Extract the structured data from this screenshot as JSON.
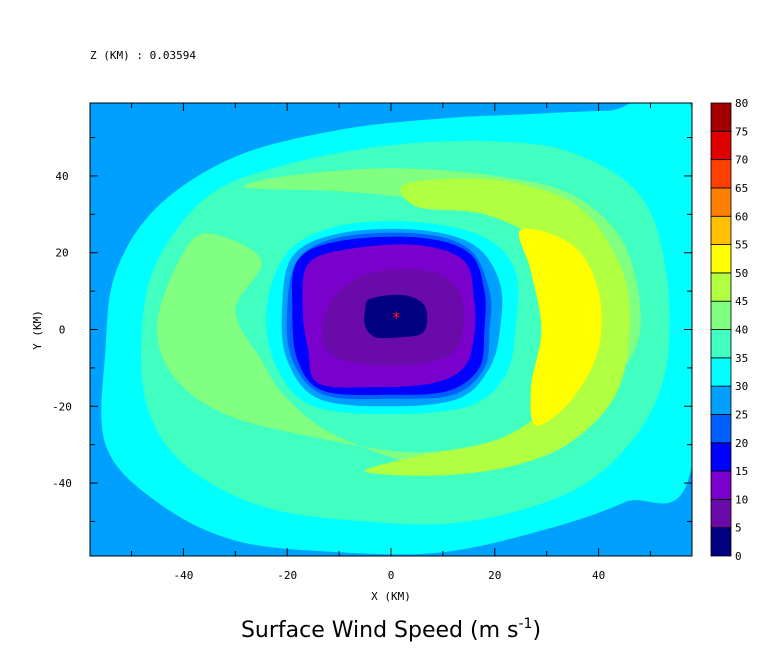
{
  "chart_data": {
    "type": "heatmap",
    "title": "Surface Wind Speed (m s",
    "title_exponent": "-1",
    "subtitle": "Z (KM) : 0.03594",
    "xlabel": "X (KM)",
    "ylabel": "Y (KM)",
    "xlim": [
      -58,
      58
    ],
    "ylim": [
      -59,
      59
    ],
    "x_ticks": [
      "-40",
      "-20",
      "0",
      "20",
      "40"
    ],
    "x_tick_values": [
      -40,
      -20,
      0,
      20,
      40
    ],
    "y_ticks": [
      "-40",
      "-20",
      "0",
      "20",
      "40"
    ],
    "y_tick_values": [
      -40,
      -20,
      0,
      20,
      40
    ],
    "colorbar": {
      "levels": [
        "0",
        "5",
        "10",
        "15",
        "20",
        "25",
        "30",
        "35",
        "40",
        "45",
        "50",
        "55",
        "60",
        "65",
        "70",
        "75",
        "80"
      ],
      "colors": [
        "#000080",
        "#6a0aa8",
        "#7a00cc",
        "#0000ff",
        "#0060ff",
        "#00a0ff",
        "#00ffff",
        "#40ffc0",
        "#80ff80",
        "#b0ff40",
        "#ffff00",
        "#ffc000",
        "#ff8000",
        "#ff4000",
        "#e00000",
        "#a00000"
      ]
    },
    "regions": [
      {
        "level_min": 0,
        "points": []
      },
      {
        "level_min": 25,
        "points": [
          [
            -58,
            -59
          ],
          [
            58,
            -59
          ],
          [
            58,
            -38
          ],
          [
            40,
            -50
          ],
          [
            30,
            -59
          ],
          [
            -30,
            -59
          ],
          [
            -50,
            -50
          ],
          [
            -58,
            -40
          ]
        ]
      },
      {
        "level_min": 25,
        "points": [
          [
            -58,
            59
          ],
          [
            -50,
            59
          ],
          [
            -55,
            50
          ],
          [
            -58,
            47
          ]
        ]
      },
      {
        "level_min": 30,
        "points": [
          [
            -55,
            -5
          ],
          [
            -53,
            15
          ],
          [
            -45,
            32
          ],
          [
            -30,
            45
          ],
          [
            -10,
            52
          ],
          [
            10,
            55
          ],
          [
            25,
            56
          ],
          [
            42,
            57
          ],
          [
            58,
            57
          ],
          [
            58,
            -35
          ],
          [
            45,
            -45
          ],
          [
            30,
            -52
          ],
          [
            10,
            -58
          ],
          [
            -10,
            -58
          ],
          [
            -30,
            -55
          ],
          [
            -45,
            -45
          ],
          [
            -55,
            -30
          ]
        ]
      },
      {
        "level_min": 35,
        "points": [
          [
            -48,
            0
          ],
          [
            -45,
            18
          ],
          [
            -35,
            35
          ],
          [
            -20,
            43
          ],
          [
            0,
            48
          ],
          [
            20,
            49
          ],
          [
            35,
            46
          ],
          [
            48,
            35
          ],
          [
            53,
            15
          ],
          [
            53,
            -10
          ],
          [
            47,
            -28
          ],
          [
            35,
            -42
          ],
          [
            15,
            -50
          ],
          [
            -5,
            -50
          ],
          [
            -25,
            -46
          ],
          [
            -40,
            -35
          ],
          [
            -47,
            -20
          ]
        ]
      },
      {
        "level_min": 40,
        "points": [
          [
            -45,
            2
          ],
          [
            -40,
            20
          ],
          [
            -35,
            25
          ],
          [
            -25,
            18
          ],
          [
            -30,
            5
          ],
          [
            -25,
            -8
          ],
          [
            -20,
            -18
          ],
          [
            -10,
            -28
          ],
          [
            10,
            -36
          ],
          [
            30,
            -30
          ],
          [
            42,
            -15
          ],
          [
            48,
            0
          ],
          [
            45,
            22
          ],
          [
            35,
            35
          ],
          [
            20,
            40
          ],
          [
            0,
            42
          ],
          [
            -20,
            40
          ],
          [
            -28,
            37
          ],
          [
            -10,
            36
          ],
          [
            5,
            34
          ],
          [
            20,
            30
          ],
          [
            32,
            22
          ],
          [
            38,
            10
          ],
          [
            38,
            -5
          ],
          [
            33,
            -20
          ],
          [
            22,
            -28
          ],
          [
            5,
            -32
          ],
          [
            -15,
            -28
          ],
          [
            -32,
            -22
          ],
          [
            -42,
            -12
          ]
        ]
      },
      {
        "level_min": 45,
        "points": [
          [
            3,
            38
          ],
          [
            20,
            39
          ],
          [
            35,
            33
          ],
          [
            43,
            20
          ],
          [
            46,
            5
          ],
          [
            44,
            -15
          ],
          [
            36,
            -28
          ],
          [
            25,
            -35
          ],
          [
            10,
            -38
          ],
          [
            -5,
            -37
          ],
          [
            5,
            -33
          ],
          [
            20,
            -29
          ],
          [
            30,
            -20
          ],
          [
            35,
            -5
          ],
          [
            35,
            10
          ],
          [
            30,
            22
          ],
          [
            18,
            30
          ],
          [
            5,
            32
          ]
        ]
      },
      {
        "level_min": 50,
        "points": [
          [
            25,
            26
          ],
          [
            35,
            22
          ],
          [
            40,
            10
          ],
          [
            40,
            -5
          ],
          [
            35,
            -18
          ],
          [
            28,
            -25
          ],
          [
            27,
            -15
          ],
          [
            29,
            0
          ],
          [
            27,
            15
          ]
        ]
      },
      {
        "level_min": 30,
        "points": [
          [
            -20,
            20
          ],
          [
            -10,
            27
          ],
          [
            5,
            28
          ],
          [
            18,
            24
          ],
          [
            24,
            15
          ],
          [
            24,
            0
          ],
          [
            22,
            -12
          ],
          [
            15,
            -20
          ],
          [
            0,
            -22
          ],
          [
            -15,
            -20
          ],
          [
            -22,
            -10
          ],
          [
            -24,
            5
          ]
        ]
      },
      {
        "level_min": 25,
        "points": [
          [
            -19,
            19
          ],
          [
            -10,
            25
          ],
          [
            5,
            26
          ],
          [
            16,
            22
          ],
          [
            21,
            12
          ],
          [
            21,
            0
          ],
          [
            19,
            -10
          ],
          [
            13,
            -18
          ],
          [
            0,
            -20
          ],
          [
            -14,
            -18
          ],
          [
            -20,
            -8
          ],
          [
            -21,
            5
          ]
        ]
      },
      {
        "level_min": 20,
        "points": [
          [
            -18,
            18
          ],
          [
            -10,
            24
          ],
          [
            5,
            25
          ],
          [
            15,
            21
          ],
          [
            19,
            10
          ],
          [
            19,
            0
          ],
          [
            18,
            -10
          ],
          [
            12,
            -17
          ],
          [
            0,
            -18
          ],
          [
            -13,
            -17
          ],
          [
            -19,
            -8
          ],
          [
            -20,
            5
          ]
        ]
      },
      {
        "level_min": 15,
        "points": [
          [
            -18,
            18
          ],
          [
            -10,
            23
          ],
          [
            5,
            24
          ],
          [
            15,
            20
          ],
          [
            18,
            10
          ],
          [
            18,
            0
          ],
          [
            17,
            -10
          ],
          [
            11,
            -16
          ],
          [
            0,
            -17
          ],
          [
            -13,
            -16
          ],
          [
            -18,
            -8
          ],
          [
            -19,
            5
          ]
        ]
      },
      {
        "level_min": 10,
        "points": [
          [
            -16,
            17
          ],
          [
            -8,
            21
          ],
          [
            5,
            22
          ],
          [
            14,
            18
          ],
          [
            16,
            8
          ],
          [
            16,
            -2
          ],
          [
            14,
            -10
          ],
          [
            8,
            -14
          ],
          [
            -3,
            -15
          ],
          [
            -14,
            -14
          ],
          [
            -16,
            -5
          ],
          [
            -17,
            5
          ]
        ]
      },
      {
        "level_min": 5,
        "points": [
          [
            -10,
            10
          ],
          [
            -3,
            15
          ],
          [
            8,
            15
          ],
          [
            13,
            10
          ],
          [
            14,
            2
          ],
          [
            12,
            -6
          ],
          [
            5,
            -9
          ],
          [
            -5,
            -9
          ],
          [
            -12,
            -6
          ],
          [
            -13,
            2
          ]
        ]
      },
      {
        "level_min": 0,
        "points": [
          [
            -4,
            8
          ],
          [
            2,
            9
          ],
          [
            6,
            7
          ],
          [
            7,
            3
          ],
          [
            6,
            -1
          ],
          [
            2,
            -2
          ],
          [
            -3,
            -2
          ],
          [
            -5,
            1
          ],
          [
            -5,
            5
          ]
        ]
      }
    ],
    "center_marker": {
      "x": 1,
      "y": 3,
      "symbol": "*"
    },
    "grid": false
  }
}
